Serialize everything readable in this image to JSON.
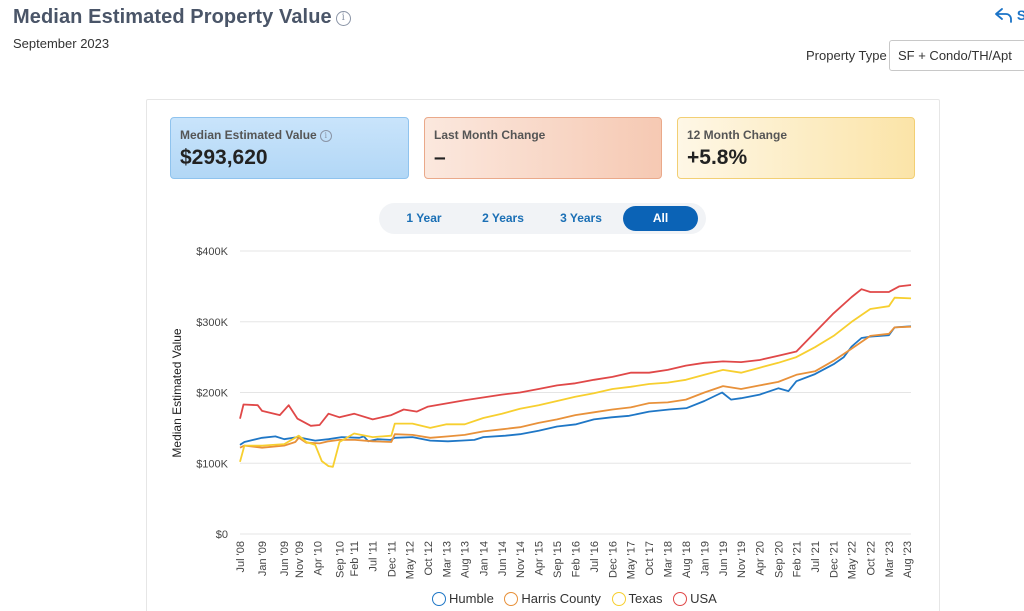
{
  "header": {
    "title": "Median Estimated Property Value",
    "subtitle": "September 2023",
    "share_label": "S"
  },
  "filters": {
    "property_type_label": "Property Type",
    "property_type_value": "SF + Condo/TH/Apt"
  },
  "stats": [
    {
      "label": "Median Estimated Value",
      "value": "$293,620"
    },
    {
      "label": "Last Month Change",
      "value": "–"
    },
    {
      "label": "12 Month Change",
      "value": "+5.8%"
    }
  ],
  "range_tabs": [
    {
      "label": "1 Year",
      "active": false
    },
    {
      "label": "2 Years",
      "active": false
    },
    {
      "label": "3 Years",
      "active": false
    },
    {
      "label": "All",
      "active": true
    }
  ],
  "colors": {
    "humble": "#1f77c6",
    "harris": "#e8913a",
    "texas": "#f7cf2f",
    "usa": "#e04848",
    "grid": "#e5e5e5",
    "accent": "#0b63b6"
  },
  "chart_data": {
    "type": "line",
    "ylabel": "Median Estimated Value",
    "xlabel": "",
    "ylim": [
      0,
      400000
    ],
    "y_ticks": [
      {
        "value": 0,
        "label": "$0"
      },
      {
        "value": 100000,
        "label": "$100K"
      },
      {
        "value": 200000,
        "label": "$200K"
      },
      {
        "value": 300000,
        "label": "$300K"
      },
      {
        "value": 400000,
        "label": "$400K"
      }
    ],
    "x_range": [
      2008.5,
      2023.67
    ],
    "x_ticks": [
      {
        "t": 2008.5,
        "label": "Jul '08"
      },
      {
        "t": 2009.0,
        "label": "Jan '09"
      },
      {
        "t": 2009.5,
        "label": "Jun '09"
      },
      {
        "t": 2009.83,
        "label": "Nov '09"
      },
      {
        "t": 2010.25,
        "label": "Apr '10"
      },
      {
        "t": 2010.75,
        "label": "Sep '10"
      },
      {
        "t": 2011.08,
        "label": "Feb '11"
      },
      {
        "t": 2011.5,
        "label": "Jul '11"
      },
      {
        "t": 2011.92,
        "label": "Dec '11"
      },
      {
        "t": 2012.33,
        "label": "May '12"
      },
      {
        "t": 2012.75,
        "label": "Oct '12"
      },
      {
        "t": 2013.17,
        "label": "Mar '13"
      },
      {
        "t": 2013.58,
        "label": "Aug '13"
      },
      {
        "t": 2014.0,
        "label": "Jan '14"
      },
      {
        "t": 2014.42,
        "label": "Jun '14"
      },
      {
        "t": 2014.83,
        "label": "Nov '14"
      },
      {
        "t": 2015.25,
        "label": "Apr '15"
      },
      {
        "t": 2015.67,
        "label": "Sep '15"
      },
      {
        "t": 2016.08,
        "label": "Feb '16"
      },
      {
        "t": 2016.5,
        "label": "Jul '16"
      },
      {
        "t": 2016.92,
        "label": "Dec '16"
      },
      {
        "t": 2017.33,
        "label": "May '17"
      },
      {
        "t": 2017.75,
        "label": "Oct '17"
      },
      {
        "t": 2018.17,
        "label": "Mar '18"
      },
      {
        "t": 2018.58,
        "label": "Aug '18"
      },
      {
        "t": 2019.0,
        "label": "Jan '19"
      },
      {
        "t": 2019.42,
        "label": "Jun '19"
      },
      {
        "t": 2019.83,
        "label": "Nov '19"
      },
      {
        "t": 2020.25,
        "label": "Apr '20"
      },
      {
        "t": 2020.67,
        "label": "Sep '20"
      },
      {
        "t": 2021.08,
        "label": "Feb '21"
      },
      {
        "t": 2021.5,
        "label": "Jul '21"
      },
      {
        "t": 2021.92,
        "label": "Dec '21"
      },
      {
        "t": 2022.33,
        "label": "May '22"
      },
      {
        "t": 2022.75,
        "label": "Oct '22"
      },
      {
        "t": 2023.17,
        "label": "Mar '23"
      },
      {
        "t": 2023.58,
        "label": "Aug '23"
      }
    ],
    "series": [
      {
        "name": "Humble",
        "color": "#1f77c6",
        "points": [
          [
            2008.5,
            126000
          ],
          [
            2008.6,
            130000
          ],
          [
            2009.0,
            136000
          ],
          [
            2009.3,
            138000
          ],
          [
            2009.5,
            134000
          ],
          [
            2009.8,
            137000
          ],
          [
            2010.2,
            132000
          ],
          [
            2010.5,
            134000
          ],
          [
            2010.8,
            137000
          ],
          [
            2011.2,
            136000
          ],
          [
            2011.3,
            138000
          ],
          [
            2011.4,
            131000
          ],
          [
            2011.6,
            134000
          ],
          [
            2011.9,
            133000
          ],
          [
            2012.0,
            136000
          ],
          [
            2012.4,
            137000
          ],
          [
            2012.8,
            132000
          ],
          [
            2013.2,
            131000
          ],
          [
            2013.5,
            132000
          ],
          [
            2013.8,
            133000
          ],
          [
            2014.0,
            137000
          ],
          [
            2014.5,
            139000
          ],
          [
            2014.83,
            141000
          ],
          [
            2015.25,
            146000
          ],
          [
            2015.67,
            152000
          ],
          [
            2016.1,
            155000
          ],
          [
            2016.5,
            162000
          ],
          [
            2016.9,
            165000
          ],
          [
            2017.3,
            167000
          ],
          [
            2017.75,
            173000
          ],
          [
            2018.2,
            176000
          ],
          [
            2018.6,
            178000
          ],
          [
            2019.0,
            188000
          ],
          [
            2019.4,
            200000
          ],
          [
            2019.6,
            190000
          ],
          [
            2019.83,
            192000
          ],
          [
            2020.25,
            197000
          ],
          [
            2020.67,
            206000
          ],
          [
            2020.9,
            202000
          ],
          [
            2021.08,
            216000
          ],
          [
            2021.5,
            226000
          ],
          [
            2021.92,
            240000
          ],
          [
            2022.15,
            250000
          ],
          [
            2022.33,
            265000
          ],
          [
            2022.55,
            277000
          ],
          [
            2022.75,
            279000
          ],
          [
            2023.17,
            281000
          ],
          [
            2023.3,
            292000
          ],
          [
            2023.67,
            293620
          ]
        ]
      },
      {
        "name": "Harris County",
        "color": "#e8913a",
        "points": [
          [
            2008.5,
            122000
          ],
          [
            2008.6,
            125000
          ],
          [
            2009.0,
            122000
          ],
          [
            2009.5,
            125000
          ],
          [
            2009.75,
            130000
          ],
          [
            2009.83,
            136000
          ],
          [
            2010.0,
            129000
          ],
          [
            2010.3,
            128000
          ],
          [
            2010.5,
            131000
          ],
          [
            2010.75,
            133000
          ],
          [
            2011.1,
            133000
          ],
          [
            2011.5,
            131000
          ],
          [
            2011.92,
            130000
          ],
          [
            2012.0,
            141000
          ],
          [
            2012.4,
            140000
          ],
          [
            2012.8,
            136000
          ],
          [
            2013.2,
            138000
          ],
          [
            2013.58,
            140000
          ],
          [
            2014.0,
            145000
          ],
          [
            2014.42,
            148000
          ],
          [
            2014.83,
            151000
          ],
          [
            2015.25,
            157000
          ],
          [
            2015.67,
            162000
          ],
          [
            2016.08,
            168000
          ],
          [
            2016.5,
            172000
          ],
          [
            2016.92,
            176000
          ],
          [
            2017.33,
            179000
          ],
          [
            2017.75,
            185000
          ],
          [
            2018.17,
            186000
          ],
          [
            2018.58,
            190000
          ],
          [
            2019.0,
            200000
          ],
          [
            2019.42,
            209000
          ],
          [
            2019.83,
            205000
          ],
          [
            2020.25,
            210000
          ],
          [
            2020.67,
            215000
          ],
          [
            2021.08,
            225000
          ],
          [
            2021.5,
            230000
          ],
          [
            2021.92,
            245000
          ],
          [
            2022.33,
            262000
          ],
          [
            2022.75,
            280000
          ],
          [
            2023.17,
            283000
          ],
          [
            2023.3,
            292000
          ],
          [
            2023.67,
            293000
          ]
        ]
      },
      {
        "name": "Texas",
        "color": "#f7cf2f",
        "points": [
          [
            2008.5,
            102000
          ],
          [
            2008.6,
            125000
          ],
          [
            2009.0,
            125000
          ],
          [
            2009.5,
            127000
          ],
          [
            2009.83,
            139000
          ],
          [
            2010.0,
            130000
          ],
          [
            2010.2,
            126000
          ],
          [
            2010.35,
            103000
          ],
          [
            2010.5,
            96000
          ],
          [
            2010.6,
            95000
          ],
          [
            2010.75,
            130000
          ],
          [
            2011.08,
            142000
          ],
          [
            2011.5,
            137000
          ],
          [
            2011.92,
            139000
          ],
          [
            2012.0,
            156000
          ],
          [
            2012.4,
            156000
          ],
          [
            2012.8,
            150000
          ],
          [
            2013.17,
            155000
          ],
          [
            2013.58,
            155000
          ],
          [
            2014.0,
            164000
          ],
          [
            2014.42,
            170000
          ],
          [
            2014.83,
            177000
          ],
          [
            2015.25,
            182000
          ],
          [
            2015.67,
            188000
          ],
          [
            2016.08,
            194000
          ],
          [
            2016.5,
            199000
          ],
          [
            2016.92,
            205000
          ],
          [
            2017.33,
            208000
          ],
          [
            2017.75,
            212000
          ],
          [
            2018.17,
            214000
          ],
          [
            2018.58,
            218000
          ],
          [
            2019.0,
            225000
          ],
          [
            2019.42,
            232000
          ],
          [
            2019.83,
            228000
          ],
          [
            2020.25,
            235000
          ],
          [
            2020.67,
            242000
          ],
          [
            2021.08,
            250000
          ],
          [
            2021.5,
            264000
          ],
          [
            2021.92,
            280000
          ],
          [
            2022.33,
            300000
          ],
          [
            2022.75,
            318000
          ],
          [
            2023.17,
            322000
          ],
          [
            2023.3,
            334000
          ],
          [
            2023.67,
            333000
          ]
        ]
      },
      {
        "name": "USA",
        "color": "#e04848",
        "points": [
          [
            2008.5,
            163000
          ],
          [
            2008.58,
            183000
          ],
          [
            2008.9,
            182000
          ],
          [
            2009.0,
            174000
          ],
          [
            2009.4,
            168000
          ],
          [
            2009.6,
            182000
          ],
          [
            2009.8,
            163000
          ],
          [
            2010.1,
            153000
          ],
          [
            2010.3,
            154000
          ],
          [
            2010.5,
            170000
          ],
          [
            2010.75,
            165000
          ],
          [
            2011.08,
            170000
          ],
          [
            2011.5,
            162000
          ],
          [
            2011.92,
            168000
          ],
          [
            2012.2,
            176000
          ],
          [
            2012.5,
            173000
          ],
          [
            2012.75,
            180000
          ],
          [
            2013.58,
            189000
          ],
          [
            2014.42,
            197000
          ],
          [
            2014.83,
            200000
          ],
          [
            2015.25,
            205000
          ],
          [
            2015.67,
            210000
          ],
          [
            2016.08,
            213000
          ],
          [
            2016.5,
            218000
          ],
          [
            2016.92,
            222000
          ],
          [
            2017.33,
            228000
          ],
          [
            2017.75,
            228000
          ],
          [
            2018.17,
            232000
          ],
          [
            2018.58,
            238000
          ],
          [
            2019.0,
            242000
          ],
          [
            2019.42,
            244000
          ],
          [
            2019.83,
            243000
          ],
          [
            2020.25,
            246000
          ],
          [
            2020.67,
            252000
          ],
          [
            2021.08,
            258000
          ],
          [
            2021.5,
            285000
          ],
          [
            2021.92,
            312000
          ],
          [
            2022.33,
            335000
          ],
          [
            2022.55,
            346000
          ],
          [
            2022.75,
            342000
          ],
          [
            2023.17,
            342000
          ],
          [
            2023.4,
            350000
          ],
          [
            2023.67,
            352000
          ]
        ]
      }
    ]
  },
  "legend": [
    {
      "label": "Humble",
      "color": "#1f77c6"
    },
    {
      "label": "Harris County",
      "color": "#e8913a"
    },
    {
      "label": "Texas",
      "color": "#f7cf2f"
    },
    {
      "label": "USA",
      "color": "#e04848"
    }
  ]
}
